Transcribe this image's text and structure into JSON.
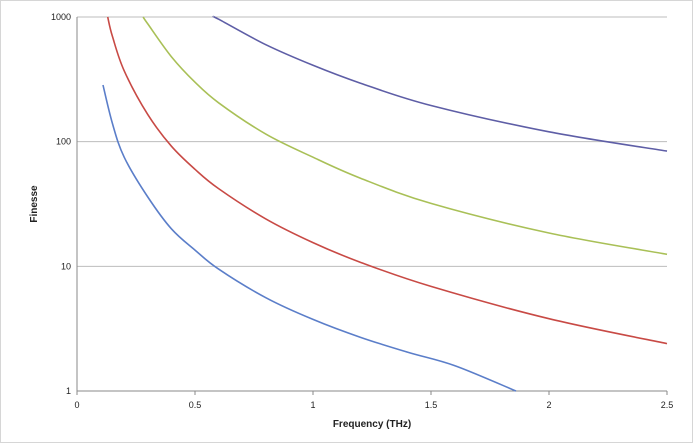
{
  "chart_data": {
    "type": "line",
    "title": "",
    "xlabel": "Frequency (THz)",
    "ylabel": "Finesse",
    "xlim": [
      0,
      2.5
    ],
    "ylim": [
      1,
      1000
    ],
    "yscale": "log",
    "x_ticks": [
      "0",
      "0.5",
      "1",
      "1.5",
      "2",
      "2.5"
    ],
    "y_ticks": [
      "1",
      "10",
      "100",
      "1000"
    ],
    "grid": "horizontal",
    "legend": "none",
    "series": [
      {
        "color": "#5b7ec9",
        "x": [
          0.11,
          0.15,
          0.2,
          0.3,
          0.4,
          0.5,
          0.6,
          0.8,
          1.0,
          1.2,
          1.4,
          1.6,
          1.86
        ],
        "y": [
          285,
          140,
          75,
          36,
          20,
          13.5,
          9.5,
          5.6,
          3.75,
          2.7,
          2.05,
          1.6,
          1.0
        ]
      },
      {
        "color": "#c84a45",
        "x": [
          0.13,
          0.15,
          0.2,
          0.3,
          0.4,
          0.5,
          0.6,
          0.8,
          1.0,
          1.2,
          1.5,
          2.0,
          2.5
        ],
        "y": [
          1000,
          700,
          370,
          165,
          92,
          60,
          42,
          24,
          15.5,
          10.8,
          6.9,
          3.8,
          2.4
        ]
      },
      {
        "color": "#a9c057",
        "x": [
          0.28,
          0.3,
          0.4,
          0.5,
          0.6,
          0.8,
          1.0,
          1.2,
          1.5,
          2.0,
          2.5
        ],
        "y": [
          1000,
          880,
          480,
          300,
          205,
          115,
          75,
          51,
          32,
          18.5,
          12.5
        ]
      },
      {
        "color": "#5e5ea6",
        "x": [
          0.58,
          0.6,
          0.8,
          1.0,
          1.2,
          1.5,
          2.0,
          2.5
        ],
        "y": [
          1000,
          960,
          600,
          410,
          295,
          195,
          120,
          84
        ]
      }
    ]
  }
}
